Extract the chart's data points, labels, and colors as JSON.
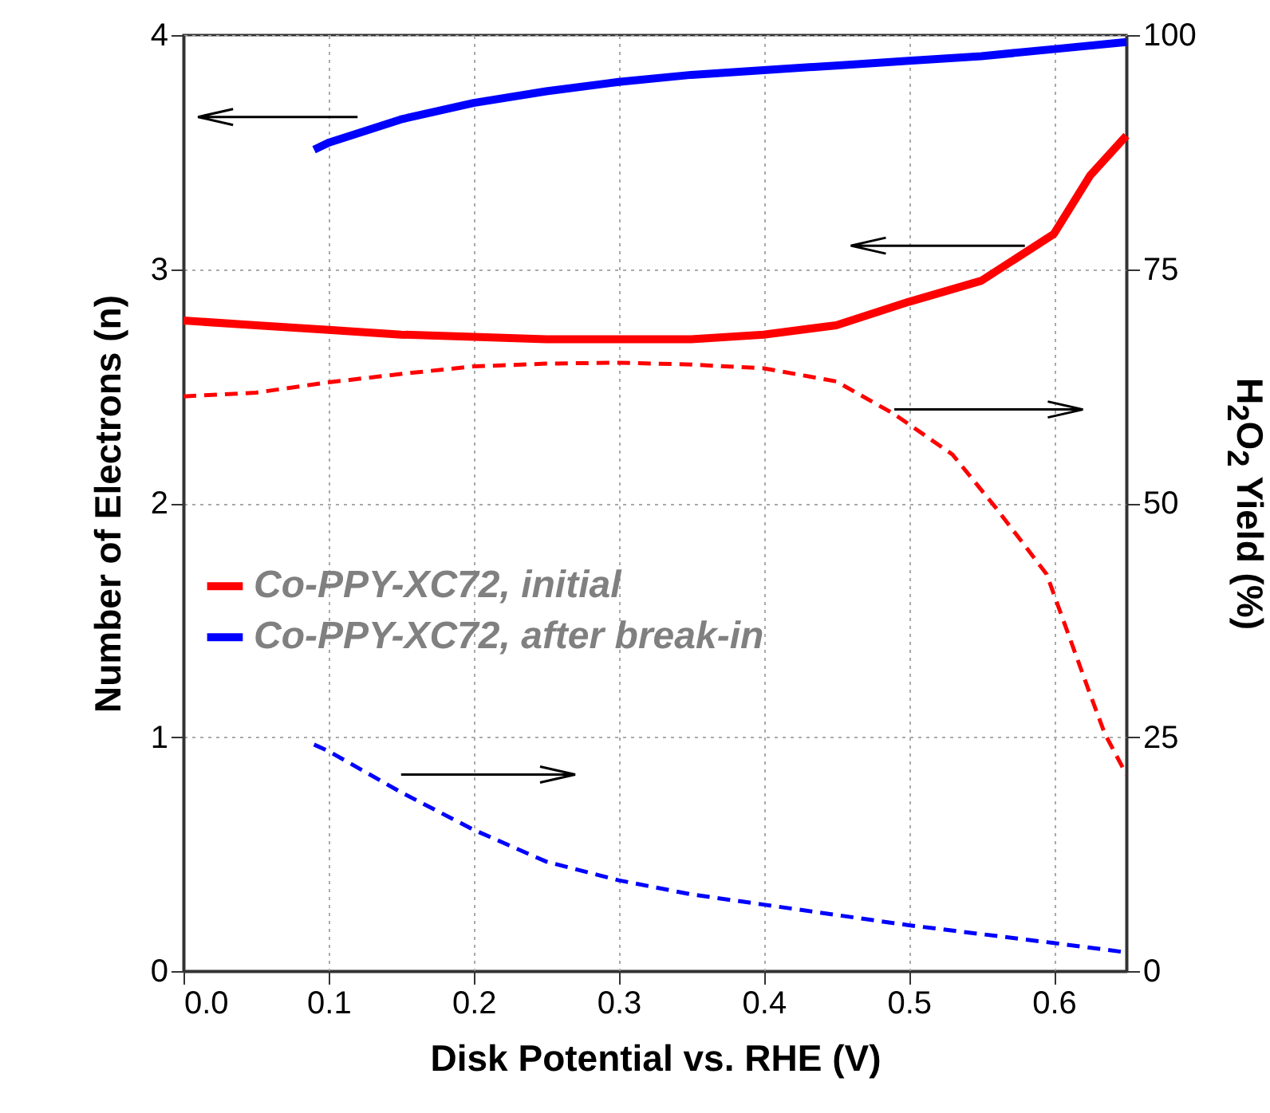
{
  "chart_data": {
    "type": "line",
    "xlabel": "Disk Potential vs. RHE (V)",
    "ylabel": "Number of Electrons (n)",
    "y2label": "H$_{2}$O$_{2}$ Yield (%)",
    "xlim": [
      0,
      0.65
    ],
    "xticks": [
      {
        "value": 0,
        "label": "0.0"
      },
      0.1,
      0.2,
      0.3,
      0.4,
      0.5,
      0.6
    ],
    "ylim": [
      0,
      4
    ],
    "yticks": [
      0,
      1,
      2,
      3,
      4
    ],
    "y2lim": [
      0,
      100
    ],
    "y2ticks": [
      0,
      25,
      50,
      75,
      100
    ],
    "grid": true,
    "legend": "left",
    "marker": "none",
    "series": [
      {
        "name": "Co-PPY-XC72, initial",
        "color": "#ff0000",
        "line_style": "solid",
        "x": [
          0,
          0.05,
          0.1,
          0.15,
          0.2,
          0.25,
          0.3,
          0.35,
          0.4,
          0.45,
          0.5,
          0.55,
          0.6,
          0.625,
          0.65
        ],
        "values": [
          2.78,
          2.76,
          2.74,
          2.72,
          2.71,
          2.7,
          2.7,
          2.7,
          2.72,
          2.76,
          2.86,
          2.95,
          3.15,
          3.4,
          3.57
        ]
      },
      {
        "name": "Co-PPY-XC72, after break-in",
        "color": "#0000ff",
        "line_style": "solid",
        "x": [
          0.09,
          0.1,
          0.15,
          0.2,
          0.25,
          0.3,
          0.35,
          0.4,
          0.45,
          0.5,
          0.55,
          0.6,
          0.65
        ],
        "values": [
          3.51,
          3.54,
          3.64,
          3.71,
          3.76,
          3.8,
          3.83,
          3.85,
          3.87,
          3.89,
          3.91,
          3.94,
          3.97
        ]
      },
      {
        "color": "#ff0000",
        "line_style": "dashed",
        "axis": "y2",
        "x": [
          0,
          0.05,
          0.1,
          0.15,
          0.2,
          0.25,
          0.3,
          0.35,
          0.4,
          0.45,
          0.49,
          0.53,
          0.56,
          0.595,
          0.624,
          0.635,
          0.65
        ],
        "values": [
          61.4,
          61.8,
          62.9,
          63.8,
          64.6,
          64.9,
          65,
          64.8,
          64.4,
          63,
          59.5,
          55.2,
          49.5,
          42.4,
          30,
          25.4,
          21
        ]
      },
      {
        "color": "#0000ff",
        "line_style": "dashed",
        "axis": "y2",
        "x": [
          0.09,
          0.1,
          0.15,
          0.2,
          0.25,
          0.3,
          0.35,
          0.4,
          0.5,
          0.6,
          0.65
        ],
        "values": [
          24.2,
          23.5,
          19.1,
          15.1,
          11.7,
          9.7,
          8.2,
          7.1,
          4.9,
          3,
          2
        ]
      }
    ]
  }
}
